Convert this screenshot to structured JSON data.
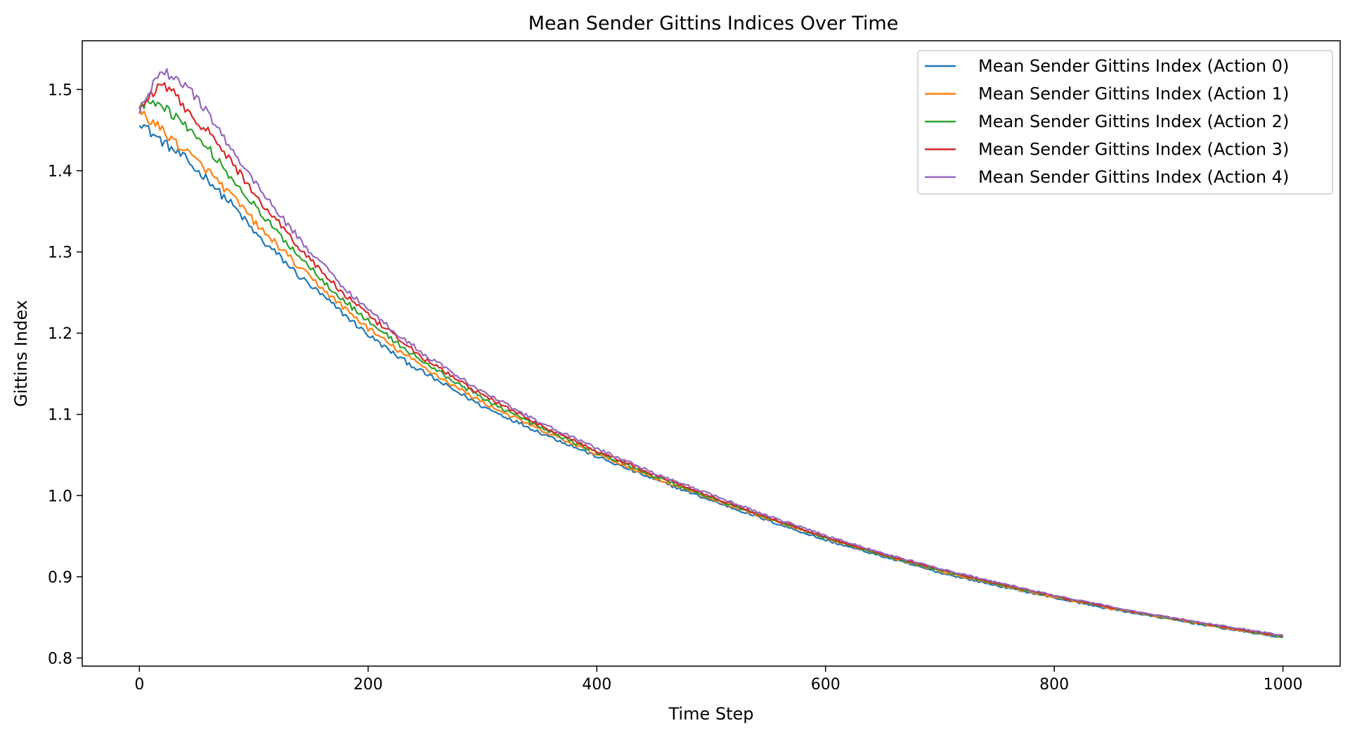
{
  "chart_data": {
    "type": "line",
    "title": "Mean Sender Gittins Indices Over Time",
    "xlabel": "Time Step",
    "ylabel": "Gittins Index",
    "xlim": [
      -50,
      1050
    ],
    "ylim": [
      0.79,
      1.56
    ],
    "xticks": [
      0,
      200,
      400,
      600,
      800,
      1000
    ],
    "yticks": [
      0.8,
      0.9,
      1.0,
      1.1,
      1.2,
      1.3,
      1.4,
      1.5
    ],
    "xtick_labels": [
      "0",
      "200",
      "400",
      "600",
      "800",
      "1000"
    ],
    "ytick_labels": [
      "0.8",
      "0.9",
      "1.0",
      "1.1",
      "1.2",
      "1.3",
      "1.4",
      "1.5"
    ],
    "grid": false,
    "legend_position": "top-right",
    "x": [
      0,
      10,
      20,
      30,
      40,
      50,
      60,
      70,
      80,
      90,
      100,
      110,
      120,
      130,
      140,
      150,
      175,
      200,
      225,
      250,
      275,
      300,
      350,
      400,
      450,
      500,
      550,
      600,
      650,
      700,
      750,
      800,
      850,
      900,
      950,
      1000
    ],
    "series": [
      {
        "name": "Mean Sender Gittins Index (Action 0)",
        "color": "#1f77b4",
        "values": [
          1.462,
          1.447,
          1.436,
          1.425,
          1.415,
          1.4,
          1.39,
          1.373,
          1.36,
          1.343,
          1.325,
          1.31,
          1.298,
          1.284,
          1.27,
          1.258,
          1.228,
          1.198,
          1.172,
          1.15,
          1.13,
          1.11,
          1.078,
          1.048,
          1.02,
          0.994,
          0.969,
          0.945,
          0.925,
          0.905,
          0.889,
          0.874,
          0.86,
          0.848,
          0.836,
          0.825
        ]
      },
      {
        "name": "Mean Sender Gittins Index (Action 1)",
        "color": "#ff7f0e",
        "values": [
          1.474,
          1.462,
          1.45,
          1.437,
          1.425,
          1.412,
          1.4,
          1.385,
          1.37,
          1.355,
          1.338,
          1.322,
          1.31,
          1.295,
          1.28,
          1.268,
          1.236,
          1.206,
          1.18,
          1.157,
          1.135,
          1.115,
          1.081,
          1.051,
          1.022,
          0.996,
          0.971,
          0.947,
          0.927,
          0.907,
          0.89,
          0.875,
          0.861,
          0.849,
          0.837,
          0.826
        ]
      },
      {
        "name": "Mean Sender Gittins Index (Action 2)",
        "color": "#2ca02c",
        "values": [
          1.476,
          1.488,
          1.482,
          1.468,
          1.458,
          1.44,
          1.428,
          1.41,
          1.392,
          1.375,
          1.358,
          1.34,
          1.325,
          1.31,
          1.295,
          1.28,
          1.245,
          1.215,
          1.188,
          1.163,
          1.141,
          1.12,
          1.084,
          1.053,
          1.024,
          0.997,
          0.972,
          0.948,
          0.927,
          0.908,
          0.891,
          0.876,
          0.862,
          0.849,
          0.838,
          0.826
        ]
      },
      {
        "name": "Mean Sender Gittins Index (Action 3)",
        "color": "#d62728",
        "values": [
          1.475,
          1.495,
          1.505,
          1.495,
          1.478,
          1.462,
          1.448,
          1.43,
          1.412,
          1.392,
          1.372,
          1.355,
          1.34,
          1.322,
          1.305,
          1.29,
          1.253,
          1.222,
          1.194,
          1.168,
          1.145,
          1.124,
          1.087,
          1.055,
          1.026,
          0.999,
          0.973,
          0.949,
          0.928,
          0.909,
          0.892,
          0.876,
          0.862,
          0.85,
          0.838,
          0.827
        ]
      },
      {
        "name": "Mean Sender Gittins Index (Action 4)",
        "color": "#9467bd",
        "values": [
          1.474,
          1.5,
          1.522,
          1.515,
          1.505,
          1.49,
          1.47,
          1.45,
          1.428,
          1.405,
          1.388,
          1.37,
          1.35,
          1.333,
          1.316,
          1.3,
          1.262,
          1.229,
          1.2,
          1.173,
          1.15,
          1.128,
          1.09,
          1.058,
          1.028,
          1.001,
          0.975,
          0.951,
          0.929,
          0.91,
          0.893,
          0.877,
          0.863,
          0.85,
          0.839,
          0.828
        ]
      }
    ]
  }
}
